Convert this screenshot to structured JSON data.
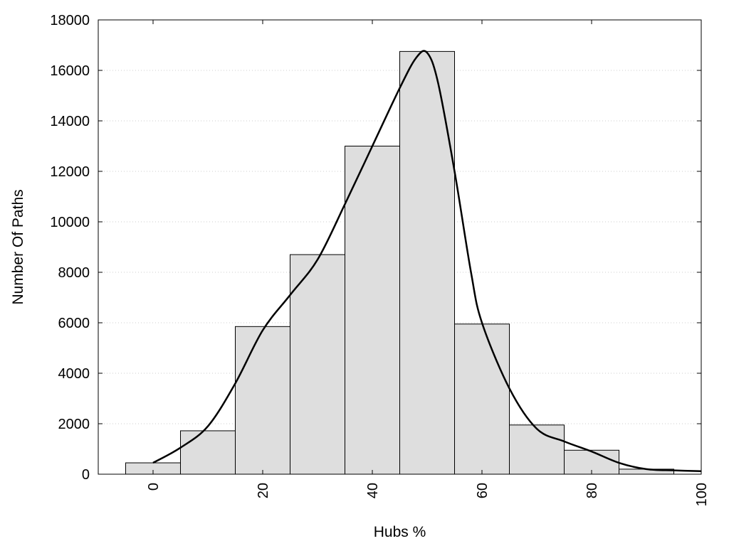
{
  "chart_data": {
    "type": "bar",
    "title": "",
    "xlabel": "Hubs %",
    "ylabel": "Number Of Paths",
    "xlim": [
      -10,
      100
    ],
    "ylim": [
      0,
      18000
    ],
    "x_ticks": [
      0,
      20,
      40,
      60,
      80,
      100
    ],
    "y_ticks": [
      0,
      2000,
      4000,
      6000,
      8000,
      10000,
      12000,
      14000,
      16000,
      18000
    ],
    "bin_width": 10,
    "bins": [
      {
        "x": 0,
        "value": 450
      },
      {
        "x": 10,
        "value": 1720
      },
      {
        "x": 20,
        "value": 5850
      },
      {
        "x": 30,
        "value": 8700
      },
      {
        "x": 40,
        "value": 13000
      },
      {
        "x": 50,
        "value": 16750
      },
      {
        "x": 60,
        "value": 5950
      },
      {
        "x": 70,
        "value": 1950
      },
      {
        "x": 80,
        "value": 950
      },
      {
        "x": 90,
        "value": 200
      }
    ],
    "density_curve": [
      [
        0,
        450
      ],
      [
        5,
        1050
      ],
      [
        10,
        1900
      ],
      [
        15,
        3600
      ],
      [
        20,
        5700
      ],
      [
        25,
        7100
      ],
      [
        30,
        8500
      ],
      [
        35,
        10700
      ],
      [
        40,
        13000
      ],
      [
        45,
        15300
      ],
      [
        48,
        16500
      ],
      [
        50,
        16700
      ],
      [
        52,
        15500
      ],
      [
        55,
        12000
      ],
      [
        58,
        8000
      ],
      [
        60,
        6000
      ],
      [
        65,
        3400
      ],
      [
        70,
        1800
      ],
      [
        75,
        1300
      ],
      [
        80,
        900
      ],
      [
        85,
        450
      ],
      [
        90,
        200
      ],
      [
        95,
        150
      ],
      [
        100,
        120
      ]
    ],
    "grid": true,
    "colors": {
      "bar_fill": "#dedede",
      "bar_stroke": "#000000",
      "curve": "#000000",
      "grid": "#cccccc"
    }
  }
}
